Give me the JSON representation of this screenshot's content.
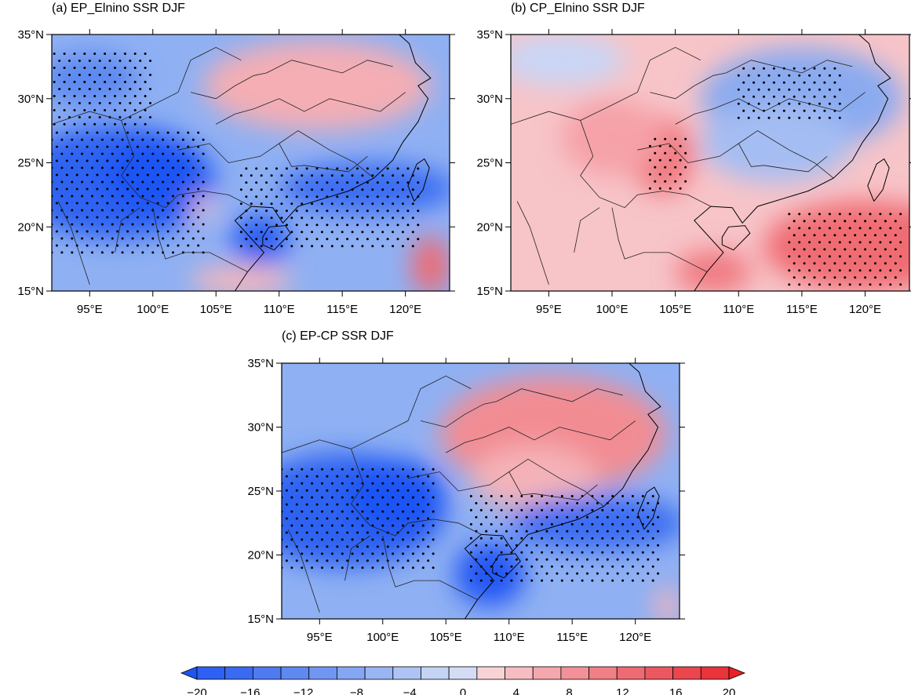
{
  "panels": [
    {
      "id": "a",
      "title": "(a) EP_Elnino SSR DJF",
      "base": "#8fb0f3",
      "blobs": [
        {
          "lon": 97,
          "lat": 23.5,
          "rx": 8,
          "ry": 4.5,
          "c": "#2d63f2"
        },
        {
          "lon": 100,
          "lat": 24,
          "rx": 4,
          "ry": 3,
          "c": "#1f55f5"
        },
        {
          "lon": 95,
          "lat": 31.5,
          "rx": 4,
          "ry": 2,
          "c": "#5b88f1"
        },
        {
          "lon": 113,
          "lat": 31,
          "rx": 9,
          "ry": 3.5,
          "c": "#f4aeb4"
        },
        {
          "lon": 117,
          "lat": 23,
          "rx": 7,
          "ry": 2,
          "c": "#3a6df2"
        },
        {
          "lon": 108.5,
          "lat": 19,
          "rx": 2.3,
          "ry": 2,
          "c": "#2a5ff3"
        },
        {
          "lon": 122,
          "lat": 17,
          "rx": 1.5,
          "ry": 2.3,
          "c": "#f06a72"
        },
        {
          "lon": 107,
          "lat": 15.8,
          "rx": 4,
          "ry": 1.2,
          "c": "#f4b7bc"
        },
        {
          "lon": 104,
          "lat": 21.5,
          "rx": 1,
          "ry": 0.8,
          "c": "#f4c4c8"
        }
      ],
      "stipple": [
        {
          "lon0": 92.2,
          "lon1": 100,
          "lat0": 28,
          "lat1": 34
        },
        {
          "lon0": 92,
          "lon1": 104,
          "lat0": 18,
          "lat1": 27.5
        },
        {
          "lon0": 107,
          "lon1": 121,
          "lat0": 18.5,
          "lat1": 25
        }
      ]
    },
    {
      "id": "b",
      "title": "(b) CP_Elnino SSR DJF",
      "base": "#f7c4c8",
      "blobs": [
        {
          "lon": 115,
          "lat": 30,
          "rx": 8,
          "ry": 4,
          "c": "#8aaaf0"
        },
        {
          "lon": 113,
          "lat": 26.5,
          "rx": 6,
          "ry": 3,
          "c": "#a4bdf3"
        },
        {
          "lon": 120,
          "lat": 18.5,
          "rx": 8,
          "ry": 3.5,
          "c": "#f06c73"
        },
        {
          "lon": 104,
          "lat": 25.5,
          "rx": 2.5,
          "ry": 3,
          "c": "#f07880"
        },
        {
          "lon": 108,
          "lat": 16.5,
          "rx": 3,
          "ry": 1.7,
          "c": "#f07a82"
        },
        {
          "lon": 100,
          "lat": 27,
          "rx": 4,
          "ry": 3,
          "c": "#f5a1a7"
        },
        {
          "lon": 96,
          "lat": 33,
          "rx": 5,
          "ry": 2,
          "c": "#c9d6f6"
        }
      ],
      "stipple": [
        {
          "lon0": 110,
          "lon1": 118,
          "lat0": 28.5,
          "lat1": 32.5
        },
        {
          "lon0": 103,
          "lon1": 106,
          "lat0": 23,
          "lat1": 27
        },
        {
          "lon0": 114,
          "lon1": 123,
          "lat0": 15.5,
          "lat1": 21.5
        }
      ]
    },
    {
      "id": "c",
      "title": "(c) EP-CP SSR DJF",
      "base": "#8fb0f3",
      "blobs": [
        {
          "lon": 97,
          "lat": 23.5,
          "rx": 8,
          "ry": 4.5,
          "c": "#2d63f2"
        },
        {
          "lon": 101,
          "lat": 24.5,
          "rx": 4,
          "ry": 3,
          "c": "#1f55f5"
        },
        {
          "lon": 113.5,
          "lat": 29.5,
          "rx": 9,
          "ry": 4.5,
          "c": "#f28c93"
        },
        {
          "lon": 112,
          "lat": 26,
          "rx": 5,
          "ry": 2.5,
          "c": "#f4b3b8"
        },
        {
          "lon": 117,
          "lat": 22.5,
          "rx": 7,
          "ry": 2.2,
          "c": "#3a6df2"
        },
        {
          "lon": 108.5,
          "lat": 18.5,
          "rx": 2.8,
          "ry": 2.5,
          "c": "#2257f4"
        },
        {
          "lon": 122.5,
          "lat": 16,
          "rx": 1,
          "ry": 1.5,
          "c": "#f4b3b8"
        }
      ],
      "stipple": [
        {
          "lon0": 92,
          "lon1": 104,
          "lat0": 19,
          "lat1": 27
        },
        {
          "lon0": 107,
          "lon1": 122,
          "lat0": 18,
          "lat1": 25
        }
      ]
    }
  ],
  "axes": {
    "lon_ticks": [
      95,
      100,
      105,
      110,
      115,
      120
    ],
    "lat_ticks": [
      15,
      20,
      25,
      30,
      35
    ],
    "lon_labels": [
      "95°E",
      "100°E",
      "105°E",
      "110°E",
      "115°E",
      "120°E"
    ],
    "lat_labels": [
      "15°N",
      "20°N",
      "25°N",
      "30°N",
      "35°N"
    ],
    "lon_range": [
      92,
      123.5
    ],
    "lat_range": [
      15,
      35
    ]
  },
  "colorbar": {
    "labels": [
      "−20",
      "−16",
      "−12",
      "−8",
      "−4",
      "0",
      "4",
      "8",
      "12",
      "16",
      "20"
    ],
    "values": [
      -20,
      -16,
      -12,
      -8,
      -4,
      0,
      4,
      8,
      12,
      16,
      20
    ],
    "colors": [
      "#1f55f5",
      "#2d60f3",
      "#3a6af2",
      "#4f7af1",
      "#5f88f1",
      "#7196f2",
      "#85a6f3",
      "#9ab5f3",
      "#aec4f4",
      "#c5d3f5",
      "#d4dcf5",
      "#f8d3d6",
      "#f6bec2",
      "#f4a7ad",
      "#f29298",
      "#f07f86",
      "#ee6b73",
      "#ec5860",
      "#ea464e",
      "#ea333b",
      "#ea1f27"
    ]
  }
}
